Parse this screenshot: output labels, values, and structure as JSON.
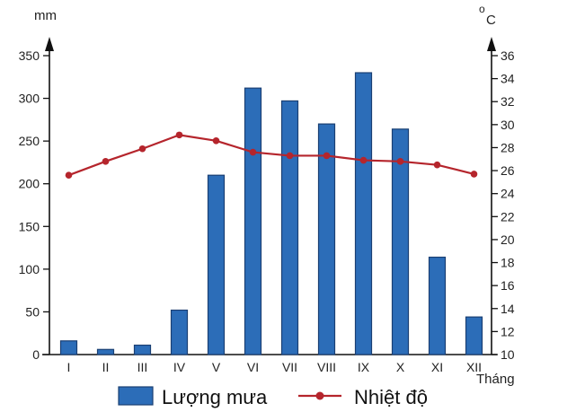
{
  "chart_data": {
    "type": "bar+line",
    "categories": [
      "I",
      "II",
      "III",
      "IV",
      "V",
      "VI",
      "VII",
      "VIII",
      "IX",
      "X",
      "XI",
      "XII"
    ],
    "x_unit": "Tháng",
    "series": [
      {
        "name": "Lượng mưa",
        "type": "bar",
        "axis": "left",
        "color": "#2c6db8",
        "values": [
          16,
          6,
          11,
          52,
          210,
          312,
          297,
          270,
          330,
          264,
          114,
          44
        ]
      },
      {
        "name": "Nhiệt độ",
        "type": "line",
        "axis": "right",
        "color": "#b5252c",
        "values": [
          25.6,
          26.8,
          27.9,
          29.1,
          28.6,
          27.6,
          27.3,
          27.3,
          26.9,
          26.8,
          26.5,
          25.7
        ]
      }
    ],
    "y_left": {
      "unit": "mm",
      "ylim": [
        0,
        350
      ],
      "ticks": [
        0,
        50,
        100,
        150,
        200,
        250,
        300,
        350
      ],
      "tick_labels": [
        "0",
        "50",
        "100",
        "150",
        "200",
        "250",
        "300",
        "350"
      ]
    },
    "y_right": {
      "unit_sup": "o",
      "unit": "C",
      "ylim": [
        10,
        36
      ],
      "ticks": [
        10,
        12,
        14,
        16,
        18,
        20,
        22,
        24,
        26,
        28,
        30,
        32,
        34,
        36
      ],
      "tick_labels": [
        "10",
        "12",
        "14",
        "16",
        "18",
        "20",
        "22",
        "24",
        "26",
        "28",
        "30",
        "32",
        "34",
        "36"
      ]
    },
    "grid": false,
    "legend_position": "bottom"
  }
}
